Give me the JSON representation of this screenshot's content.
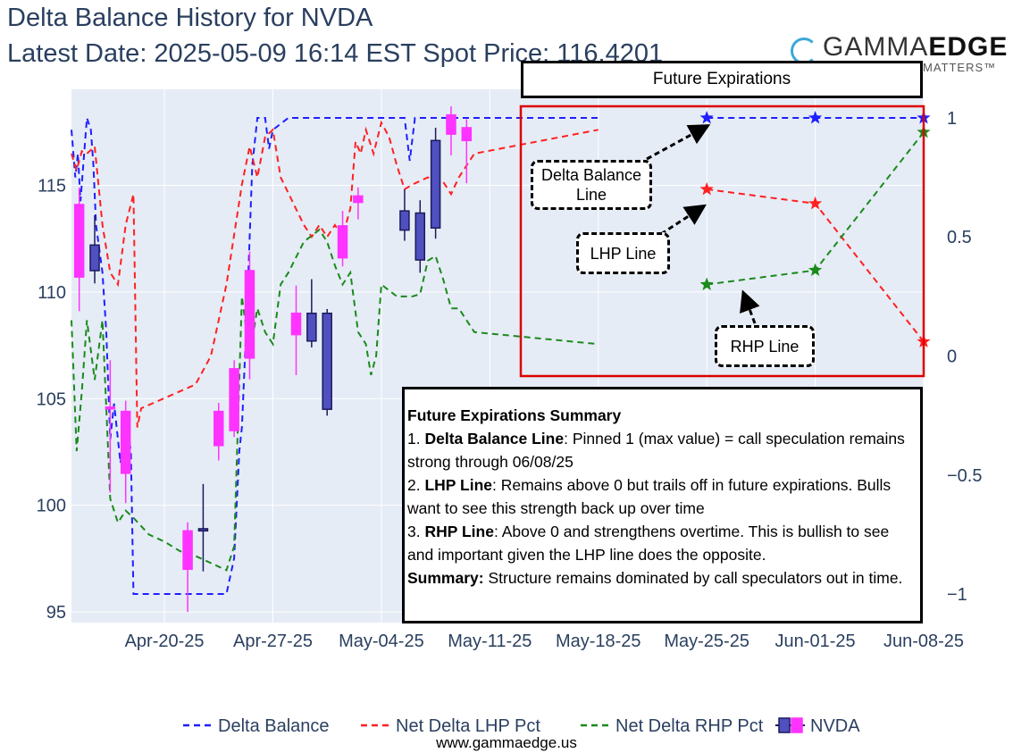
{
  "header": {
    "title": "Delta Balance History for NVDA",
    "subtitle": "Latest Date: 2025-05-09 16:14 EST Spot Price: 116.4201"
  },
  "logo": {
    "brand_light": "GAMMA",
    "brand_bold": "EDGE",
    "tagline": "MATTERS™"
  },
  "annotations": {
    "future_title": "Future Expirations",
    "delta_callout": "Delta Balance Line",
    "lhp_callout": "LHP Line",
    "rhp_callout": "RHP Line",
    "summary": {
      "heading": "Future Expirations Summary",
      "item1_label": "Delta Balance Line",
      "item1_text": ": Pinned 1 (max value) = call speculation remains strong through 06/08/25",
      "item2_label": "LHP Line",
      "item2_text": ": Remains above 0 but trails off in future expirations. Bulls want to see this strength back up over time",
      "item3_label": "RHP Line",
      "item3_text": ": Above 0 and strengthens overtime. This is bullish to see and important given the LHP line does the opposite.",
      "summary_label": "Summary:",
      "summary_text": " Structure remains dominated by call speculators out in time."
    }
  },
  "footer": {
    "url": "www.gammaedge.us"
  },
  "chart_data": {
    "type": "line",
    "x_ticks": [
      "Apr-20-25",
      "Apr-27-25",
      "May-04-25",
      "May-11-25",
      "May-18-25",
      "May-25-25",
      "Jun-01-25",
      "Jun-08-25"
    ],
    "y_left_ticks": [
      95,
      100,
      105,
      110,
      115
    ],
    "y_right_ticks": [
      -1,
      -0.5,
      0,
      0.5,
      1
    ],
    "y_left_range": [
      94.5,
      119.5
    ],
    "y_right_range": [
      -1.12,
      1.12
    ],
    "x_range": [
      "2025-04-14",
      "2025-06-08"
    ],
    "grid": true,
    "legend_position": "bottom",
    "colors": {
      "delta": "#1f1fff",
      "lhp": "#ff2020",
      "rhp": "#1a8a1a",
      "up": "#ff33ff",
      "down": "#5050c0",
      "candle_edge": "#1a1a5a",
      "highlight": "#dd0000"
    },
    "series": [
      {
        "name": "Delta Balance",
        "axis": "right",
        "values": [
          [
            "2025-04-14 00:00",
            0.95
          ],
          [
            "2025-04-14 06:00",
            0.75
          ],
          [
            "2025-04-14 10:00",
            0.85
          ],
          [
            "2025-04-14 14:00",
            0.65
          ],
          [
            "2025-04-15 00:00",
            1.0
          ],
          [
            "2025-04-15 06:00",
            0.95
          ],
          [
            "2025-04-15 10:00",
            0.8
          ],
          [
            "2025-04-15 14:00",
            0.55
          ],
          [
            "2025-04-16 00:00",
            0.35
          ],
          [
            "2025-04-16 06:00",
            0.1
          ],
          [
            "2025-04-16 12:00",
            -0.35
          ],
          [
            "2025-04-16 18:00",
            -0.2
          ],
          [
            "2025-04-17 04:00",
            -0.45
          ],
          [
            "2025-04-17 12:00",
            -0.25
          ],
          [
            "2025-04-17 20:00",
            -0.4
          ],
          [
            "2025-04-18 00:00",
            -1.0
          ],
          [
            "2025-04-24 00:00",
            -1.0
          ],
          [
            "2025-04-24 12:00",
            -0.85
          ],
          [
            "2025-04-24 20:00",
            -0.4
          ],
          [
            "2025-04-25 00:00",
            -0.3
          ],
          [
            "2025-04-25 08:00",
            0.2
          ],
          [
            "2025-04-25 16:00",
            0.8
          ],
          [
            "2025-04-26 00:00",
            1.0
          ],
          [
            "2025-04-26 12:00",
            1.0
          ],
          [
            "2025-04-26 18:00",
            0.87
          ],
          [
            "2025-04-27 00:00",
            0.95
          ],
          [
            "2025-04-28 00:00",
            1.0
          ],
          [
            "2025-05-05 12:00",
            1.0
          ],
          [
            "2025-05-05 20:00",
            0.82
          ],
          [
            "2025-05-06 04:00",
            1.0
          ],
          [
            "2025-05-18 00:00",
            1.0
          ]
        ]
      },
      {
        "name": "Net Delta LHP Pct",
        "axis": "right",
        "values": [
          [
            "2025-04-14 00:00",
            0.85
          ],
          [
            "2025-04-14 08:00",
            0.78
          ],
          [
            "2025-04-14 16:00",
            0.86
          ],
          [
            "2025-04-15 00:00",
            0.85
          ],
          [
            "2025-04-15 12:00",
            0.88
          ],
          [
            "2025-04-16 00:00",
            0.55
          ],
          [
            "2025-04-16 12:00",
            0.35
          ],
          [
            "2025-04-17 00:00",
            0.3
          ],
          [
            "2025-04-17 12:00",
            0.55
          ],
          [
            "2025-04-18 00:00",
            0.68
          ],
          [
            "2025-04-18 06:00",
            -0.3
          ],
          [
            "2025-04-18 12:00",
            -0.22
          ],
          [
            "2025-04-22 00:00",
            -0.12
          ],
          [
            "2025-04-23 00:00",
            0.0
          ],
          [
            "2025-04-24 00:00",
            0.3
          ],
          [
            "2025-04-25 00:00",
            0.72
          ],
          [
            "2025-04-25 12:00",
            0.88
          ],
          [
            "2025-04-26 00:00",
            0.75
          ],
          [
            "2025-04-26 12:00",
            0.92
          ],
          [
            "2025-04-27 00:00",
            0.95
          ],
          [
            "2025-04-27 12:00",
            0.75
          ],
          [
            "2025-04-29 00:00",
            0.55
          ],
          [
            "2025-04-29 12:00",
            0.5
          ],
          [
            "2025-04-30 00:00",
            0.55
          ],
          [
            "2025-04-30 12:00",
            0.5
          ],
          [
            "2025-05-01 00:00",
            0.55
          ],
          [
            "2025-05-01 12:00",
            0.5
          ],
          [
            "2025-05-02 00:00",
            0.62
          ],
          [
            "2025-05-02 08:00",
            0.9
          ],
          [
            "2025-05-02 16:00",
            0.85
          ],
          [
            "2025-05-03 00:00",
            0.95
          ],
          [
            "2025-05-03 12:00",
            0.85
          ],
          [
            "2025-05-04 00:00",
            0.98
          ],
          [
            "2025-05-04 12:00",
            0.92
          ],
          [
            "2025-05-05 00:00",
            0.8
          ],
          [
            "2025-05-05 12:00",
            0.7
          ],
          [
            "2025-05-06 00:00",
            0.72
          ],
          [
            "2025-05-07 00:00",
            0.75
          ],
          [
            "2025-05-08 00:00",
            0.73
          ],
          [
            "2025-05-08 12:00",
            0.68
          ],
          [
            "2025-05-09 00:00",
            0.75
          ],
          [
            "2025-05-09 12:00",
            0.8
          ],
          [
            "2025-05-10 00:00",
            0.85
          ],
          [
            "2025-05-18 00:00",
            0.95
          ]
        ]
      },
      {
        "name": "Net Delta RHP Pct",
        "axis": "right",
        "values": [
          [
            "2025-04-14 00:00",
            0.15
          ],
          [
            "2025-04-14 08:00",
            -0.4
          ],
          [
            "2025-04-14 16:00",
            -0.15
          ],
          [
            "2025-04-15 00:00",
            0.15
          ],
          [
            "2025-04-15 12:00",
            -0.1
          ],
          [
            "2025-04-16 00:00",
            0.15
          ],
          [
            "2025-04-16 12:00",
            -0.6
          ],
          [
            "2025-04-17 00:00",
            -0.7
          ],
          [
            "2025-04-17 12:00",
            -0.65
          ],
          [
            "2025-04-18 00:00",
            -0.68
          ],
          [
            "2025-04-19 00:00",
            -0.75
          ],
          [
            "2025-04-20 00:00",
            -0.78
          ],
          [
            "2025-04-21 00:00",
            -0.82
          ],
          [
            "2025-04-22 00:00",
            -0.84
          ],
          [
            "2025-04-24 00:00",
            -0.9
          ],
          [
            "2025-04-24 12:00",
            -0.8
          ],
          [
            "2025-04-25 00:00",
            0.25
          ],
          [
            "2025-04-25 12:00",
            0.0
          ],
          [
            "2025-04-26 00:00",
            0.2
          ],
          [
            "2025-04-26 12:00",
            0.1
          ],
          [
            "2025-04-27 00:00",
            0.05
          ],
          [
            "2025-04-27 12:00",
            0.3
          ],
          [
            "2025-04-28 00:00",
            0.35
          ],
          [
            "2025-04-29 00:00",
            0.48
          ],
          [
            "2025-04-30 00:00",
            0.53
          ],
          [
            "2025-04-30 12:00",
            0.48
          ],
          [
            "2025-05-01 00:00",
            0.38
          ],
          [
            "2025-05-01 12:00",
            0.3
          ],
          [
            "2025-05-02 00:00",
            0.35
          ],
          [
            "2025-05-02 12:00",
            0.1
          ],
          [
            "2025-05-03 00:00",
            0.05
          ],
          [
            "2025-05-03 08:00",
            -0.08
          ],
          [
            "2025-05-03 16:00",
            0.0
          ],
          [
            "2025-05-04 00:00",
            0.3
          ],
          [
            "2025-05-05 00:00",
            0.25
          ],
          [
            "2025-05-06 00:00",
            0.25
          ],
          [
            "2025-05-06 12:00",
            0.26
          ],
          [
            "2025-05-07 00:00",
            0.4
          ],
          [
            "2025-05-07 12:00",
            0.42
          ],
          [
            "2025-05-08 00:00",
            0.32
          ],
          [
            "2025-05-08 12:00",
            0.2
          ],
          [
            "2025-05-09 00:00",
            0.2
          ],
          [
            "2025-05-10 00:00",
            0.1
          ],
          [
            "2025-05-18 00:00",
            0.05
          ]
        ]
      },
      {
        "name": "NVDA",
        "axis": "left",
        "kind": "candlestick",
        "values": [
          {
            "x": "2025-04-14",
            "open": 110.7,
            "high": 114.9,
            "low": 109.1,
            "close": 114.1
          },
          {
            "x": "2025-04-15",
            "open": 112.2,
            "high": 113.6,
            "low": 110.4,
            "close": 111.0
          },
          {
            "x": "2025-04-16",
            "open": 104.6,
            "high": 106.8,
            "low": 100.6,
            "close": 104.6
          },
          {
            "x": "2025-04-17",
            "open": 101.5,
            "high": 104.9,
            "low": 100.1,
            "close": 104.4
          },
          {
            "x": "2025-04-21",
            "open": 97.0,
            "high": 99.2,
            "low": 95.0,
            "close": 98.8
          },
          {
            "x": "2025-04-22",
            "open": 98.9,
            "high": 101.0,
            "low": 96.9,
            "close": 98.8
          },
          {
            "x": "2025-04-23",
            "open": 102.8,
            "high": 104.8,
            "low": 102.1,
            "close": 104.4
          },
          {
            "x": "2025-04-24",
            "open": 103.5,
            "high": 106.8,
            "low": 103.2,
            "close": 106.4
          },
          {
            "x": "2025-04-25",
            "open": 106.9,
            "high": 111.9,
            "low": 105.9,
            "close": 111.0
          },
          {
            "x": "2025-04-28",
            "open": 108.0,
            "high": 110.3,
            "low": 106.1,
            "close": 109.0
          },
          {
            "x": "2025-04-29",
            "open": 109.0,
            "high": 110.6,
            "low": 107.4,
            "close": 107.7
          },
          {
            "x": "2025-04-30",
            "open": 109.0,
            "high": 109.2,
            "low": 104.2,
            "close": 104.5
          },
          {
            "x": "2025-05-01",
            "open": 111.6,
            "high": 113.8,
            "low": 111.2,
            "close": 113.1
          },
          {
            "x": "2025-05-02",
            "open": 114.2,
            "high": 114.9,
            "low": 113.4,
            "close": 114.5
          },
          {
            "x": "2025-05-05",
            "open": 113.8,
            "high": 114.8,
            "low": 112.4,
            "close": 112.9
          },
          {
            "x": "2025-05-06",
            "open": 113.7,
            "high": 114.3,
            "low": 110.9,
            "close": 111.5
          },
          {
            "x": "2025-05-07",
            "open": 117.1,
            "high": 117.7,
            "low": 112.5,
            "close": 113.0
          },
          {
            "x": "2025-05-08",
            "open": 117.4,
            "high": 118.7,
            "low": 116.4,
            "close": 118.3
          },
          {
            "x": "2025-05-09",
            "open": 117.1,
            "high": 118.1,
            "low": 115.1,
            "close": 117.7
          }
        ]
      },
      {
        "name": "Delta Balance (future)",
        "axis": "right",
        "marker": "star",
        "values": [
          [
            "2025-05-25",
            1.0
          ],
          [
            "2025-06-01",
            1.0
          ],
          [
            "2025-06-08",
            1.0
          ]
        ]
      },
      {
        "name": "Net Delta LHP Pct (future)",
        "axis": "right",
        "marker": "star",
        "values": [
          [
            "2025-05-25",
            0.7
          ],
          [
            "2025-06-01",
            0.64
          ],
          [
            "2025-06-08",
            0.06
          ]
        ]
      },
      {
        "name": "Net Delta RHP Pct (future)",
        "axis": "right",
        "marker": "star",
        "values": [
          [
            "2025-05-25",
            0.3
          ],
          [
            "2025-06-01",
            0.36
          ],
          [
            "2025-06-08",
            0.94
          ]
        ]
      }
    ]
  }
}
